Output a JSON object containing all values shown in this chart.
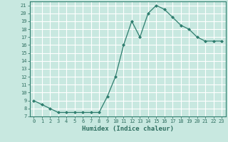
{
  "x": [
    0,
    1,
    2,
    3,
    4,
    5,
    6,
    7,
    8,
    9,
    10,
    11,
    12,
    13,
    14,
    15,
    16,
    17,
    18,
    19,
    20,
    21,
    22,
    23
  ],
  "y": [
    9,
    8.5,
    8,
    7.5,
    7.5,
    7.5,
    7.5,
    7.5,
    7.5,
    9.5,
    12,
    16,
    19,
    17,
    20,
    21,
    20.5,
    19.5,
    18.5,
    18,
    17,
    16.5,
    16.5,
    16.5
  ],
  "line_color": "#2e7d6e",
  "marker": "D",
  "marker_size": 2,
  "bg_color": "#c8e8e0",
  "grid_color": "#ffffff",
  "xlabel": "Humidex (Indice chaleur)",
  "ylim": [
    7,
    21.5
  ],
  "xlim": [
    -0.5,
    23.5
  ],
  "yticks": [
    7,
    8,
    9,
    10,
    11,
    12,
    13,
    14,
    15,
    16,
    17,
    18,
    19,
    20,
    21
  ],
  "xticks": [
    0,
    1,
    2,
    3,
    4,
    5,
    6,
    7,
    8,
    9,
    10,
    11,
    12,
    13,
    14,
    15,
    16,
    17,
    18,
    19,
    20,
    21,
    22,
    23
  ],
  "tick_fontsize": 5,
  "xlabel_fontsize": 6.5,
  "tick_color": "#2e6e60",
  "axis_color": "#2e7d6e",
  "linewidth": 0.9
}
